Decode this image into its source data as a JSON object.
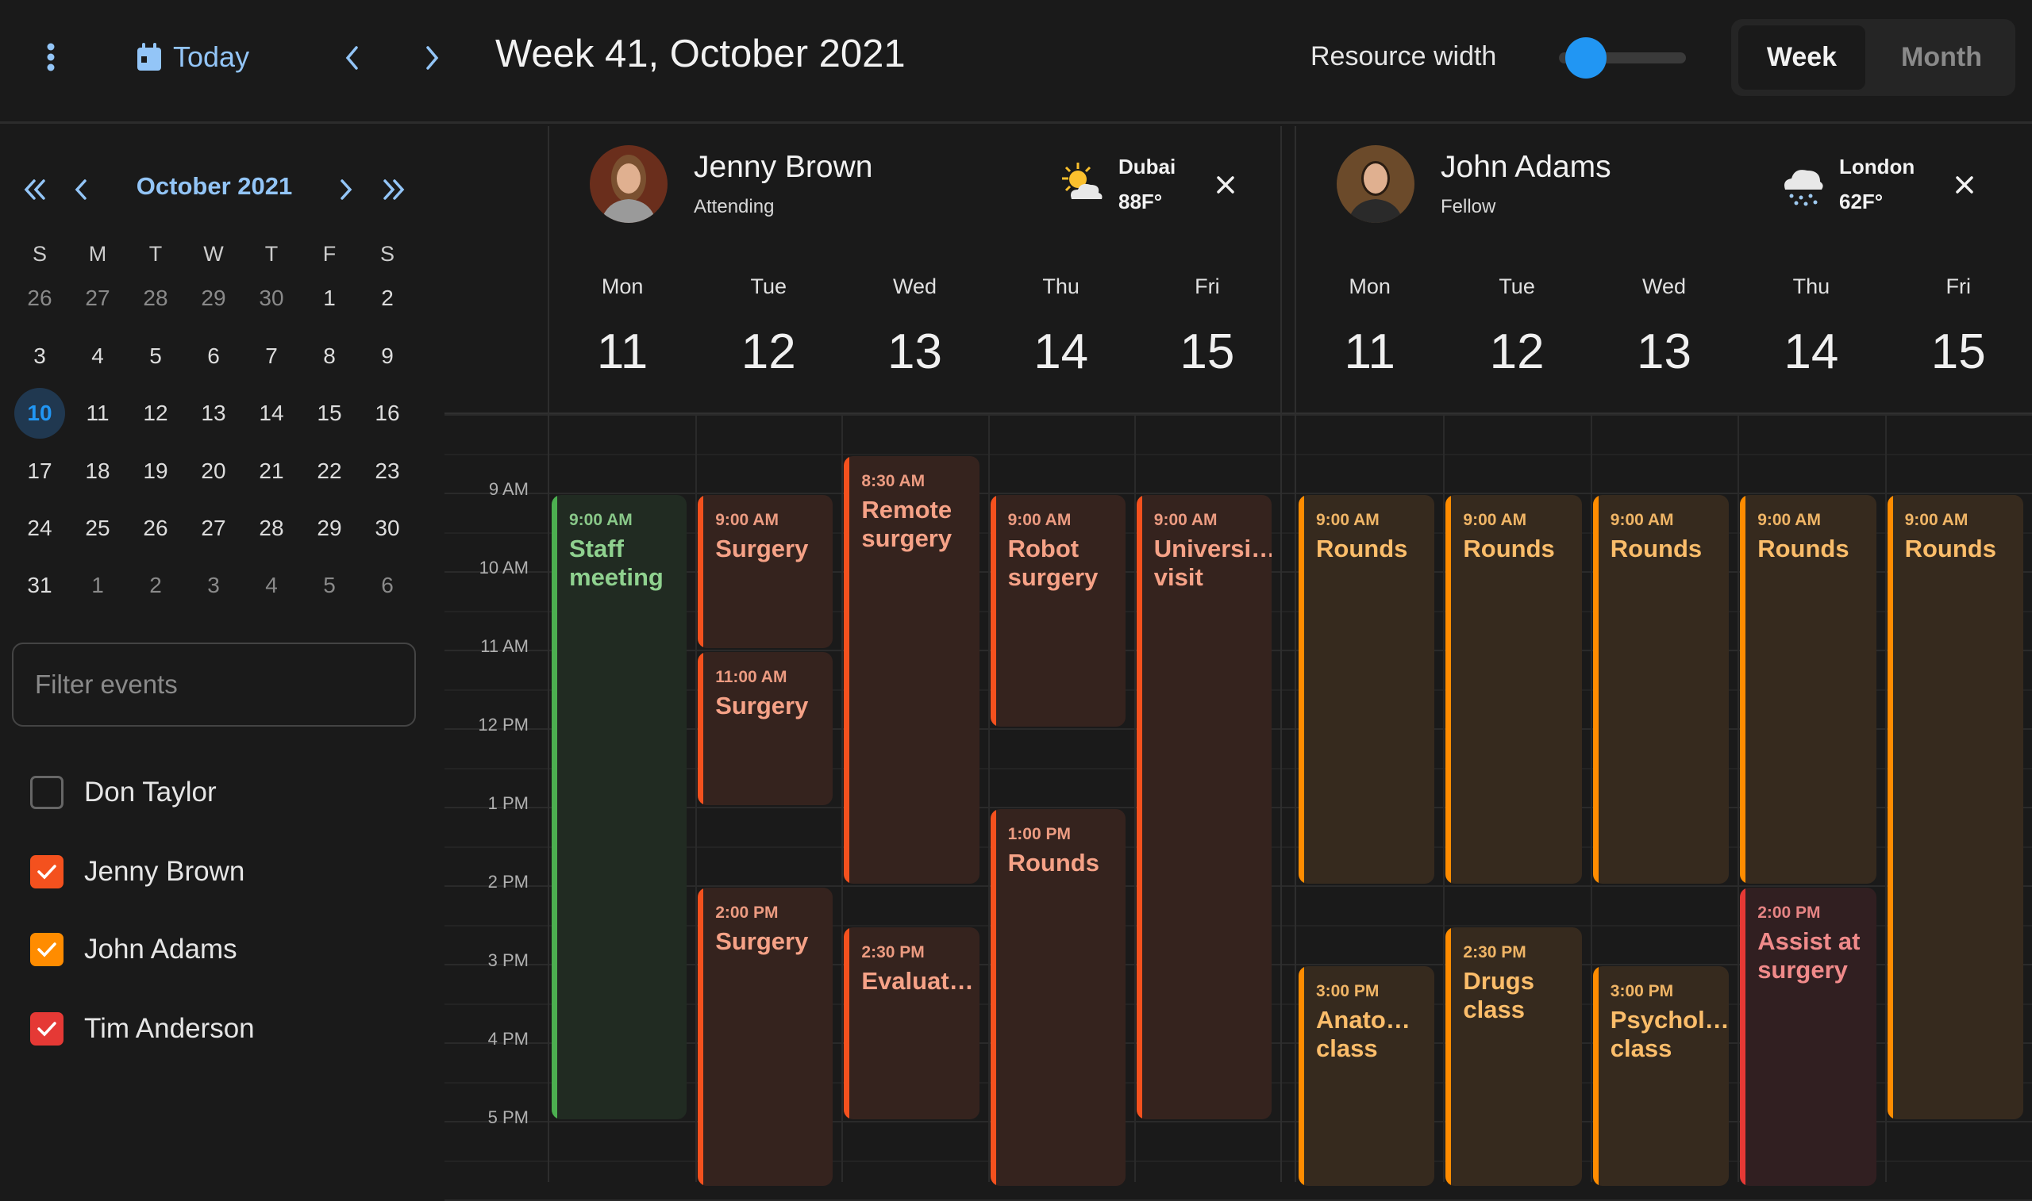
{
  "topbar": {
    "today_label": "Today",
    "title": "Week 41, October 2021",
    "resource_width_label": "Resource width",
    "resource_width_value": 0.15,
    "views": [
      "Week",
      "Month"
    ],
    "active_view": "Week"
  },
  "mini_calendar": {
    "title": "October 2021",
    "weekdays": [
      "S",
      "M",
      "T",
      "W",
      "T",
      "F",
      "S"
    ],
    "weeks": [
      [
        "26",
        "27",
        "28",
        "29",
        "30",
        "1",
        "2"
      ],
      [
        "3",
        "4",
        "5",
        "6",
        "7",
        "8",
        "9"
      ],
      [
        "10",
        "11",
        "12",
        "13",
        "14",
        "15",
        "16"
      ],
      [
        "17",
        "18",
        "19",
        "20",
        "21",
        "22",
        "23"
      ],
      [
        "24",
        "25",
        "26",
        "27",
        "28",
        "29",
        "30"
      ],
      [
        "31",
        "1",
        "2",
        "3",
        "4",
        "5",
        "6"
      ]
    ],
    "other_month": [
      [
        0,
        0
      ],
      [
        0,
        1
      ],
      [
        0,
        2
      ],
      [
        0,
        3
      ],
      [
        0,
        4
      ],
      [
        5,
        1
      ],
      [
        5,
        2
      ],
      [
        5,
        3
      ],
      [
        5,
        4
      ],
      [
        5,
        5
      ],
      [
        5,
        6
      ]
    ],
    "today": [
      2,
      0
    ]
  },
  "filter": {
    "placeholder": "Filter events"
  },
  "people": [
    {
      "name": "Don Taylor",
      "checked": false,
      "color": "#666666"
    },
    {
      "name": "Jenny Brown",
      "checked": true,
      "color": "#f4511e"
    },
    {
      "name": "John Adams",
      "checked": true,
      "color": "#ff8c00"
    },
    {
      "name": "Tim Anderson",
      "checked": true,
      "color": "#e53935"
    }
  ],
  "time_labels": [
    "9 AM",
    "10 AM",
    "11 AM",
    "12 PM",
    "1 PM",
    "2 PM",
    "3 PM",
    "4 PM",
    "5 PM"
  ],
  "colors": {
    "orangered": {
      "bar": "#f4511e",
      "bg": "#35231e",
      "text": "#f6a287"
    },
    "green": {
      "bar": "#4caf50",
      "bg": "#212b22",
      "text": "#8fd18f"
    },
    "orange": {
      "bar": "#ff8c00",
      "bg": "#362a1e",
      "text": "#fbbd6a"
    },
    "red": {
      "bar": "#e53935",
      "bg": "#311f21",
      "text": "#f08a8a"
    }
  },
  "resources": [
    {
      "name": "Jenny Brown",
      "role": "Attending",
      "city": "Dubai",
      "temp": "88F°",
      "weather": "sun-cloud",
      "days": [
        {
          "name": "Mon",
          "num": "11"
        },
        {
          "name": "Tue",
          "num": "12"
        },
        {
          "name": "Wed",
          "num": "13"
        },
        {
          "name": "Thu",
          "num": "14"
        },
        {
          "name": "Fri",
          "num": "15"
        }
      ],
      "events": [
        {
          "day": 0,
          "start": 9,
          "end": 17,
          "time": "9:00 AM",
          "title": "Staff meeting",
          "color": "green"
        },
        {
          "day": 1,
          "start": 9,
          "end": 11,
          "time": "9:00 AM",
          "title": "Surgery",
          "color": "orangered"
        },
        {
          "day": 1,
          "start": 11,
          "end": 13,
          "time": "11:00 AM",
          "title": "Surgery",
          "color": "orangered"
        },
        {
          "day": 1,
          "start": 14,
          "end": 19,
          "time": "2:00 PM",
          "title": "Surgery",
          "color": "orangered"
        },
        {
          "day": 2,
          "start": 8.5,
          "end": 14,
          "time": "8:30 AM",
          "title": "Remote surgery",
          "color": "orangered"
        },
        {
          "day": 2,
          "start": 14.5,
          "end": 17,
          "time": "2:30 PM",
          "title": "Evaluat…",
          "color": "orangered"
        },
        {
          "day": 3,
          "start": 9,
          "end": 12,
          "time": "9:00 AM",
          "title": "Robot surgery",
          "color": "orangered"
        },
        {
          "day": 3,
          "start": 13,
          "end": 19,
          "time": "1:00 PM",
          "title": "Rounds",
          "color": "orangered"
        },
        {
          "day": 4,
          "start": 9,
          "end": 17,
          "time": "9:00 AM",
          "title": "Universi… visit",
          "color": "orangered"
        }
      ]
    },
    {
      "name": "John Adams",
      "role": "Fellow",
      "city": "London",
      "temp": "62F°",
      "weather": "cloud-snow",
      "days": [
        {
          "name": "Mon",
          "num": "11"
        },
        {
          "name": "Tue",
          "num": "12"
        },
        {
          "name": "Wed",
          "num": "13"
        },
        {
          "name": "Thu",
          "num": "14"
        },
        {
          "name": "Fri",
          "num": "15"
        }
      ],
      "events": [
        {
          "day": 0,
          "start": 9,
          "end": 14,
          "time": "9:00 AM",
          "title": "Rounds",
          "color": "orange"
        },
        {
          "day": 0,
          "start": 15,
          "end": 19,
          "time": "3:00 PM",
          "title": "Anato… class",
          "color": "orange"
        },
        {
          "day": 1,
          "start": 9,
          "end": 14,
          "time": "9:00 AM",
          "title": "Rounds",
          "color": "orange"
        },
        {
          "day": 1,
          "start": 14.5,
          "end": 19,
          "time": "2:30 PM",
          "title": "Drugs class",
          "color": "orange"
        },
        {
          "day": 2,
          "start": 9,
          "end": 14,
          "time": "9:00 AM",
          "title": "Rounds",
          "color": "orange"
        },
        {
          "day": 2,
          "start": 15,
          "end": 19,
          "time": "3:00 PM",
          "title": "Psychol… class",
          "color": "orange"
        },
        {
          "day": 3,
          "start": 9,
          "end": 14,
          "time": "9:00 AM",
          "title": "Rounds",
          "color": "orange"
        },
        {
          "day": 3,
          "start": 14,
          "end": 19,
          "time": "2:00 PM",
          "title": "Assist at surgery",
          "color": "red"
        },
        {
          "day": 4,
          "start": 9,
          "end": 17,
          "time": "9:00 AM",
          "title": "Rounds",
          "color": "orange"
        }
      ]
    }
  ]
}
